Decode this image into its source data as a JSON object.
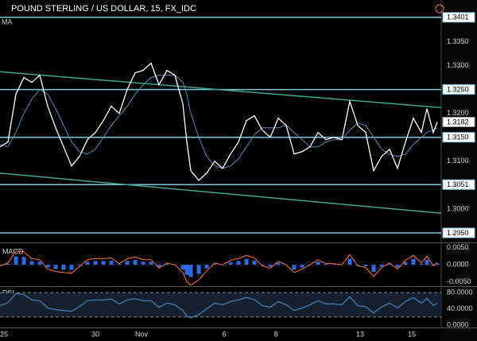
{
  "chart_data": [
    {
      "type": "line",
      "title": "POUND STERLING / US DOLLAR, 15, FX_IDC",
      "x": [
        0,
        10,
        20,
        30,
        40,
        50,
        60,
        70,
        80,
        90,
        100,
        110,
        120,
        130,
        140,
        150,
        160,
        170,
        180,
        190,
        200,
        210,
        220,
        230,
        235,
        240,
        250,
        260,
        270,
        280,
        290,
        300,
        310,
        320,
        330,
        340,
        350,
        360,
        370,
        380,
        390,
        400,
        410,
        420,
        430,
        440,
        450,
        460,
        470,
        480,
        490,
        500,
        510,
        520,
        530,
        537,
        545,
        550
      ],
      "xlim": [
        0,
        555
      ],
      "xticks": [
        {
          "value": 5,
          "label": "25"
        },
        {
          "value": 120,
          "label": "30"
        },
        {
          "value": 178,
          "label": "Nov"
        },
        {
          "value": 282,
          "label": "6"
        },
        {
          "value": 347,
          "label": "8"
        },
        {
          "value": 453,
          "label": "13"
        },
        {
          "value": 518,
          "label": "15"
        }
      ],
      "ylim": [
        1.293,
        1.3404
      ],
      "yticks": [
        {
          "value": 1.335,
          "label": "1.3350"
        },
        {
          "value": 1.33,
          "label": "1.3300"
        },
        {
          "value": 1.32,
          "label": "1.3200"
        },
        {
          "value": 1.31,
          "label": "1.3100"
        },
        {
          "value": 1.3,
          "label": "1.3000"
        }
      ],
      "levels": [
        1.3401,
        {
          "value": 1.325,
          "label": "1.3250"
        },
        {
          "value": 1.315,
          "label": "1.3150"
        },
        1.3051,
        {
          "value": 1.295,
          "label": "1.2950"
        }
      ],
      "level_color": "#7fc8da",
      "trendline_color": "#3fa58c",
      "trendlines": [
        {
          "x": [
            0,
            555
          ],
          "values": [
            1.3287,
            1.3212
          ]
        },
        {
          "x": [
            0,
            555
          ],
          "values": [
            1.3075,
            1.2991
          ]
        }
      ],
      "series": [
        {
          "color": "#ffffff",
          "values": [
            1.313,
            1.314,
            1.324,
            1.3275,
            1.3265,
            1.328,
            1.3215,
            1.317,
            1.313,
            1.309,
            1.311,
            1.3145,
            1.316,
            1.3185,
            1.3215,
            1.32,
            1.325,
            1.3285,
            1.329,
            1.3305,
            1.326,
            1.329,
            1.328,
            1.322,
            1.314,
            1.308,
            1.306,
            1.3075,
            1.31,
            1.3085,
            1.3115,
            1.314,
            1.3185,
            1.3195,
            1.3165,
            1.315,
            1.319,
            1.3175,
            1.3115,
            1.312,
            1.313,
            1.316,
            1.3145,
            1.315,
            1.3145,
            1.3225,
            1.3175,
            1.316,
            1.308,
            1.311,
            1.3125,
            1.3085,
            1.314,
            1.319,
            1.316,
            1.321,
            1.316,
            1.3182
          ]
        },
        {
          "name": "MA",
          "color": "#5b86b5",
          "values": [
            1.3135,
            1.313,
            1.316,
            1.32,
            1.323,
            1.325,
            1.324,
            1.321,
            1.3175,
            1.314,
            1.312,
            1.3115,
            1.3125,
            1.315,
            1.3175,
            1.3195,
            1.3215,
            1.324,
            1.326,
            1.3275,
            1.328,
            1.328,
            1.328,
            1.3265,
            1.324,
            1.32,
            1.315,
            1.311,
            1.309,
            1.3085,
            1.309,
            1.3105,
            1.313,
            1.3155,
            1.317,
            1.317,
            1.317,
            1.3175,
            1.316,
            1.3145,
            1.313,
            1.313,
            1.314,
            1.3145,
            1.3145,
            1.3165,
            1.318,
            1.3175,
            1.315,
            1.3125,
            1.3115,
            1.311,
            1.3115,
            1.3135,
            1.315,
            1.316,
            1.3165,
            1.317
          ]
        }
      ]
    },
    {
      "type": "macd",
      "ylim": [
        -0.0063,
        0.0061
      ],
      "yticks": [
        {
          "value": 0.005,
          "label": "0.0050"
        },
        {
          "value": 0,
          "label": "0.0000"
        },
        {
          "value": -0.005,
          "label": "-0.0050"
        }
      ],
      "series": [
        {
          "name": "MACD",
          "color": "#ff6d3a",
          "values": [
            -0.0003,
            0.0005,
            0.004,
            0.0038,
            0.0018,
            0.0015,
            -0.0013,
            -0.002,
            -0.0023,
            -0.0025,
            -0.0005,
            0.0015,
            0.0018,
            0.0018,
            0.002,
            0.0003,
            0.0018,
            0.0023,
            0.0015,
            0.0015,
            -0.001,
            0.0005,
            0,
            -0.0023,
            -0.005,
            -0.006,
            -0.0045,
            -0.0018,
            0.0005,
            0,
            0.0013,
            0.0018,
            0.0028,
            0.002,
            -0.0003,
            -0.001,
            0.001,
            0,
            -0.0023,
            -0.0013,
            0,
            0.0015,
            0.0003,
            0.0003,
            0,
            0.003,
            -0.0003,
            -0.0008,
            -0.0035,
            -0.0008,
            0.0005,
            -0.0013,
            0.0013,
            0.0028,
            0.0005,
            0.0025,
            -0.0003,
            0.0006
          ]
        }
      ],
      "histogram": {
        "color": "#2f6be8",
        "values": [
          -0.0002,
          0.0003,
          0.0024,
          0.0023,
          0.0011,
          0.0009,
          -0.0008,
          -0.0012,
          -0.0014,
          -0.0015,
          -0.0003,
          0.0009,
          0.0011,
          0.0011,
          0.0012,
          0.0002,
          0.0011,
          0.0014,
          0.0009,
          0.0009,
          -0.0006,
          0.0003,
          0,
          -0.0014,
          -0.003,
          -0.0036,
          -0.0027,
          -0.0011,
          0.0003,
          0,
          0.0008,
          0.0011,
          0.0017,
          0.0012,
          -0.0002,
          -0.0006,
          0.0006,
          0,
          -0.0014,
          -0.0008,
          0,
          0.0009,
          0.0002,
          0.0002,
          0,
          0.0018,
          -0.0002,
          -0.0005,
          -0.0021,
          -0.0005,
          0.0003,
          -0.0008,
          0.0008,
          0.0017,
          0.0003,
          0.0015,
          -0.0002,
          0.0004
        ]
      }
    },
    {
      "type": "rsi",
      "ylim": [
        -4,
        92
      ],
      "yticks": [
        {
          "value": 80,
          "label": "80.0000"
        },
        {
          "value": 40,
          "label": "40.0000"
        },
        {
          "value": 0,
          "label": "0.0000"
        }
      ],
      "bands": [
        20,
        80
      ],
      "series": [
        {
          "name": "RSI",
          "color": "#4a82b8",
          "values": [
            48,
            55,
            78,
            75,
            62,
            60,
            42,
            38,
            36,
            34,
            46,
            60,
            62,
            62,
            64,
            52,
            62,
            65,
            60,
            60,
            44,
            54,
            50,
            36,
            22,
            18,
            26,
            40,
            54,
            50,
            58,
            62,
            68,
            63,
            48,
            44,
            58,
            50,
            36,
            42,
            50,
            60,
            52,
            52,
            50,
            70,
            48,
            45,
            30,
            45,
            54,
            42,
            58,
            68,
            54,
            66,
            48,
            54
          ]
        }
      ]
    }
  ]
}
